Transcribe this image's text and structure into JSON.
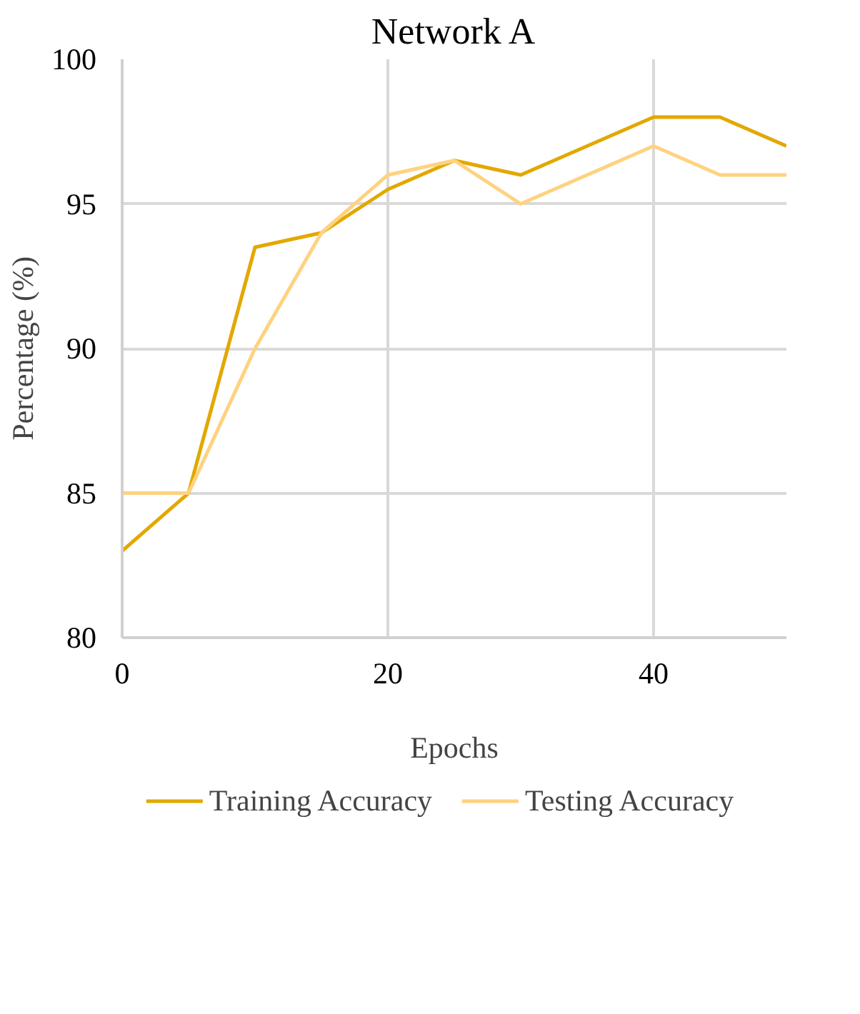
{
  "chart_data": {
    "type": "line",
    "title": "Network A",
    "xlabel": "Epochs",
    "ylabel": "Percentage (%)",
    "x": [
      0,
      5,
      10,
      15,
      20,
      25,
      30,
      35,
      40,
      45,
      50
    ],
    "series": [
      {
        "name": "Training Accuracy",
        "color": "#e2a800",
        "values": [
          83,
          85,
          93.5,
          94,
          95.5,
          96.5,
          96,
          97,
          98,
          98,
          97
        ]
      },
      {
        "name": "Testing Accuracy",
        "color": "#ffd280",
        "values": [
          85,
          85,
          90,
          94,
          96,
          96.5,
          95,
          96,
          97,
          96,
          96
        ]
      }
    ],
    "xlim": [
      0,
      50
    ],
    "ylim": [
      80,
      100
    ],
    "xticks": [
      0,
      20,
      40
    ],
    "yticks": [
      80,
      85,
      90,
      95,
      100
    ],
    "grid": true,
    "legend": "bottom",
    "marker": "none",
    "line_style": "solid"
  }
}
